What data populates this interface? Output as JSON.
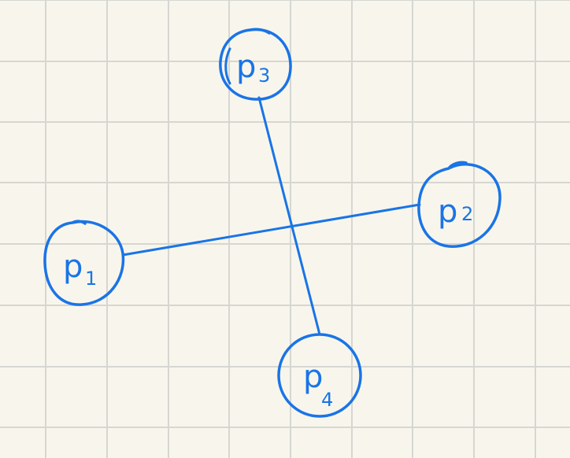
{
  "colors": {
    "background": "#f8f6ec",
    "grid": "#d6d6d2",
    "ink": "#1a74e6"
  },
  "nodes": [
    {
      "id": "p1",
      "letter": "p",
      "subscript": "1"
    },
    {
      "id": "p2",
      "letter": "p",
      "subscript": "2"
    },
    {
      "id": "p3",
      "letter": "p",
      "subscript": "3"
    },
    {
      "id": "p4",
      "letter": "p",
      "subscript": "4"
    }
  ],
  "edges": [
    {
      "from": "p1",
      "to": "p2"
    },
    {
      "from": "p3",
      "to": "p4"
    }
  ]
}
